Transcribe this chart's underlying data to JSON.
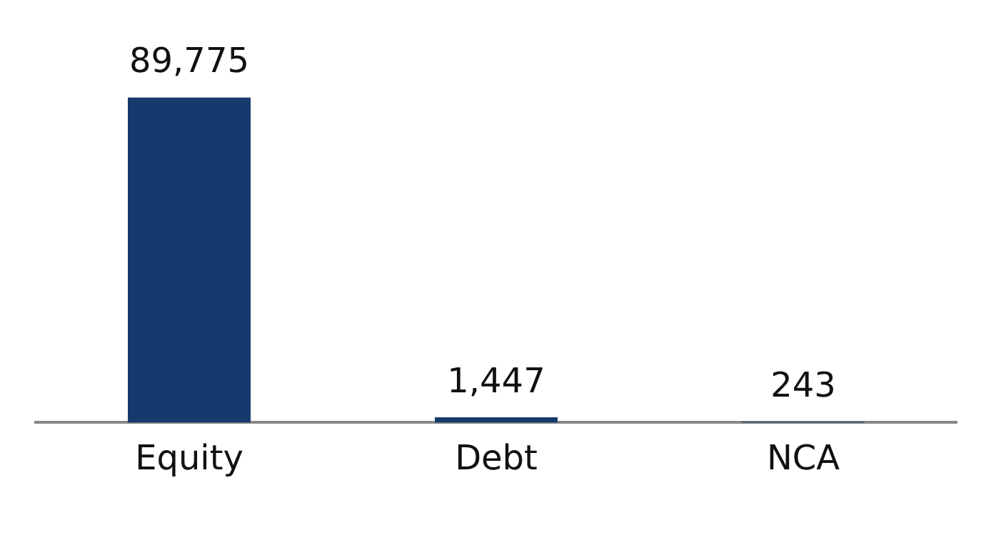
{
  "chart_data": {
    "type": "bar",
    "categories": [
      "Equity",
      "Debt",
      "NCA"
    ],
    "values": [
      89775,
      1447,
      243
    ],
    "value_labels": [
      "89,775",
      "1,447",
      "243"
    ],
    "color": "#173a6e",
    "grid": false,
    "legend": false
  }
}
